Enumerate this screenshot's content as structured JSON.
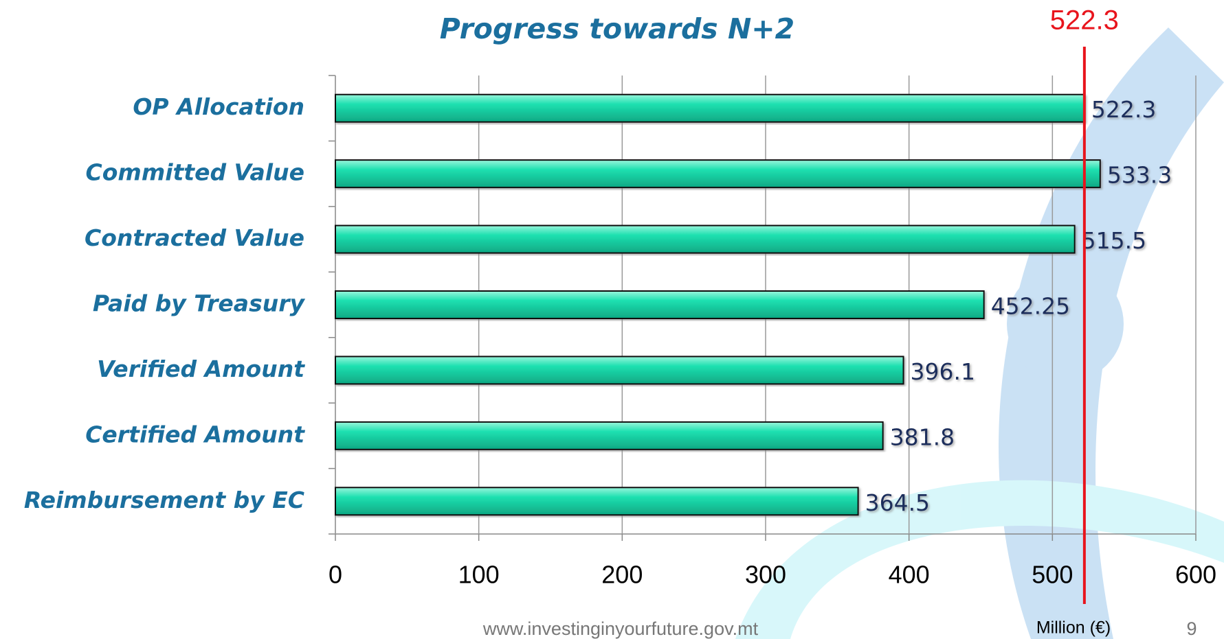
{
  "chart_data": {
    "type": "hbar",
    "title": "Progress towards N+2",
    "categories": [
      "OP Allocation",
      "Committed Value",
      "Contracted Value",
      "Paid by Treasury",
      "Verified Amount",
      "Certified Amount",
      "Reimbursement by EC"
    ],
    "values": [
      522.3,
      533.3,
      515.5,
      452.25,
      396.1,
      381.8,
      364.5
    ],
    "color": "#1de0b0",
    "xlim": [
      0,
      600
    ],
    "xticks": [
      0,
      100,
      200,
      300,
      400,
      500,
      600
    ],
    "grid": true,
    "reference_line": {
      "value": 522.3,
      "color": "#e8141c"
    },
    "x_axis_label": "Million (€)"
  },
  "footer": {
    "url": "www.investinginyourfuture.gov.mt",
    "page_number": 9
  }
}
